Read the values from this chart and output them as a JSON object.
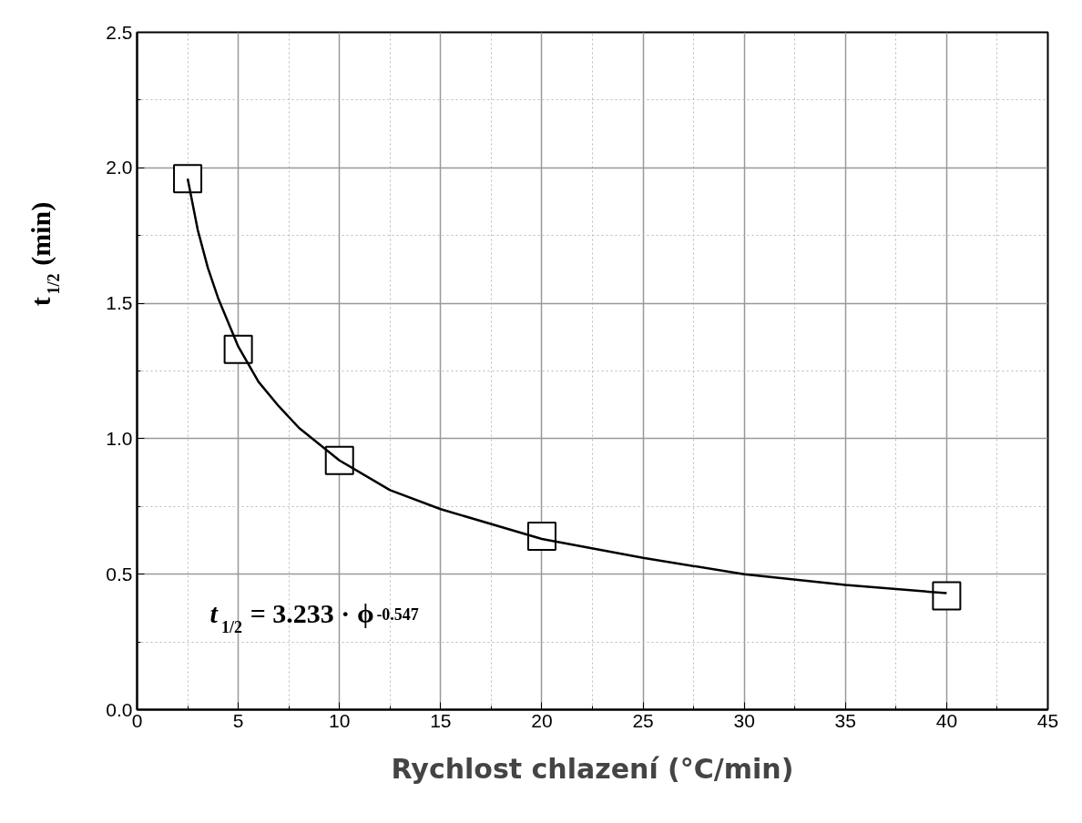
{
  "chart_data": {
    "type": "scatter",
    "xlabel": "Rychlost chlazení (°C/min)",
    "ylabel": "t$_{1/2}$ (min)",
    "xlim": [
      0,
      45
    ],
    "ylim": [
      0,
      2.5
    ],
    "xticks": [
      0,
      5,
      10,
      15,
      20,
      25,
      30,
      35,
      40,
      45
    ],
    "yticks": [
      {
        "value": 0,
        "label": "0.0"
      },
      {
        "value": 0.5,
        "label": "0.5"
      },
      {
        "value": 1,
        "label": "1.0"
      },
      {
        "value": 1.5,
        "label": "1.5"
      },
      {
        "value": 2,
        "label": "2.0"
      },
      {
        "value": 2.5,
        "label": "2.5"
      }
    ],
    "grid": true,
    "series": [
      {
        "marker": "square",
        "color": "#000000",
        "x": [
          2.5,
          5,
          10,
          20,
          40
        ],
        "values": [
          1.96,
          1.33,
          0.92,
          0.64,
          0.42
        ]
      },
      {
        "type": "line",
        "marker": "none",
        "color": "#000000",
        "x": [
          2.5,
          3,
          3.5,
          4,
          5,
          6,
          7,
          8,
          10,
          12.5,
          15,
          20,
          25,
          30,
          35,
          40
        ],
        "values": [
          1.96,
          1.77,
          1.63,
          1.52,
          1.34,
          1.21,
          1.12,
          1.04,
          0.92,
          0.81,
          0.74,
          0.63,
          0.56,
          0.5,
          0.46,
          0.43
        ]
      }
    ],
    "annotations": [
      "t$_{1/2}$ = 3.233 · ϕ$^{-0.547}$"
    ]
  }
}
